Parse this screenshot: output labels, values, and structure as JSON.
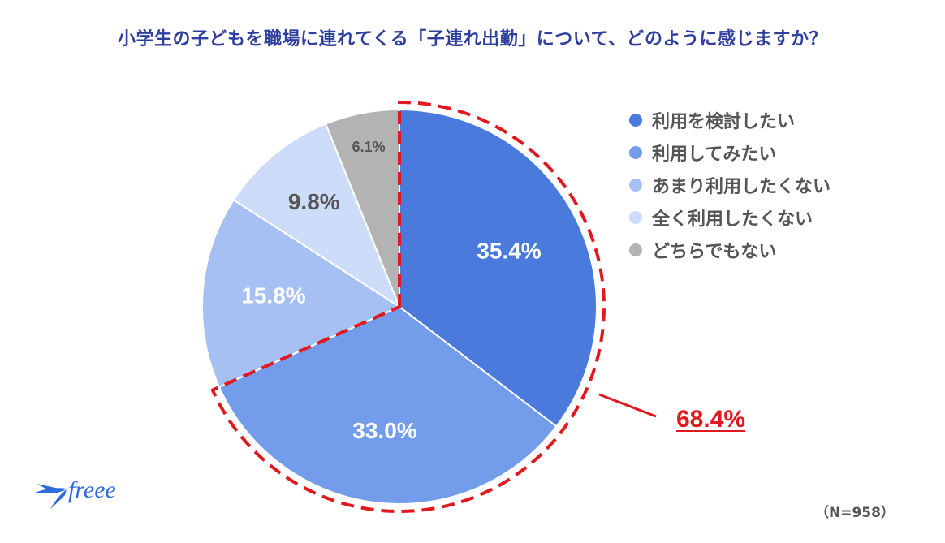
{
  "title": "小学生の子どもを職場に連れてくる「子連れ出勤」について、どのように感じますか？",
  "chart_data": {
    "type": "pie",
    "title": "小学生の子どもを職場に連れてくる「子連れ出勤」について、どのように感じますか？",
    "slices": [
      {
        "label": "利用を検討したい",
        "value": 35.4,
        "value_label": "35.4%",
        "color": "#4A7BDC"
      },
      {
        "label": "利用してみたい",
        "value": 33.0,
        "value_label": "33.0%",
        "color": "#739CEA"
      },
      {
        "label": "あまり利用したくない",
        "value": 15.8,
        "value_label": "15.8%",
        "color": "#A6C0F3"
      },
      {
        "label": "全く利用したくない",
        "value": 9.8,
        "value_label": "9.8%",
        "color": "#CDDCF9"
      },
      {
        "label": "どちらでもない",
        "value": 6.1,
        "value_label": "6.1%",
        "color": "#B3B3B3"
      }
    ],
    "highlight": {
      "value": 68.4,
      "label": "68.4%",
      "color": "#E0191F"
    },
    "legend_position": "right"
  },
  "note": "（N=958）",
  "brand": {
    "name": "freee",
    "color": "#2E6BDB"
  }
}
